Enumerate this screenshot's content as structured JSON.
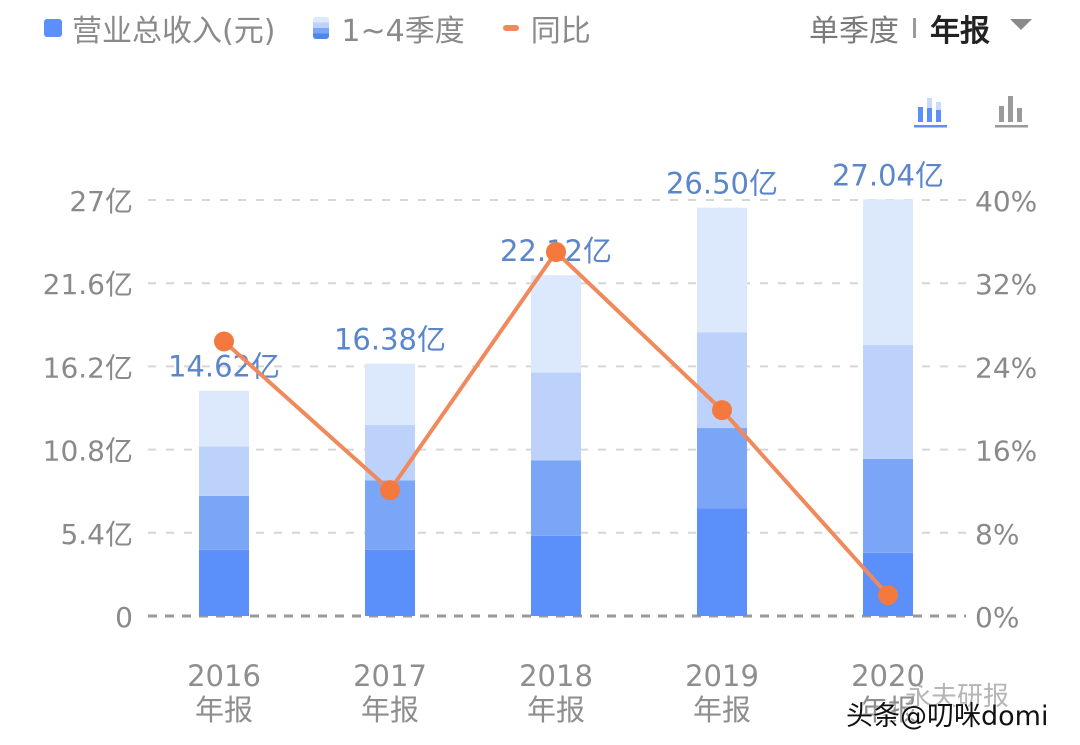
{
  "legend": {
    "items": [
      {
        "label": "营业总收入(元)",
        "type": "solid",
        "color": "#5b8ff9"
      },
      {
        "label": "1~4季度",
        "type": "gradient"
      },
      {
        "label": "同比",
        "type": "line",
        "color": "#f08a5d"
      }
    ]
  },
  "period_toggle": {
    "options": [
      "单季度",
      "年报"
    ],
    "selected": "年报",
    "caret": "chevron-down-icon"
  },
  "view_buttons": [
    {
      "name": "stacked-bar-chart-icon",
      "active": true,
      "color": "#5b8ff9"
    },
    {
      "name": "bar-chart-icon",
      "active": false,
      "color": "#9a9a9a"
    }
  ],
  "colors": {
    "q1": "#5b8ff9",
    "q2": "#7ba6f7",
    "q3": "#bcd2fb",
    "q4": "#dce8fb",
    "line": "#f08a5d",
    "value_label": "#5b86c9",
    "axis_text": "#8a8a8a",
    "grid": "#d6d6d6"
  },
  "chart_data": {
    "type": "bar",
    "title": "",
    "categories": [
      "2016年报",
      "2017年报",
      "2018年报",
      "2019年报",
      "2020年报"
    ],
    "category_labels": [
      {
        "year": "2016",
        "suffix": "年报"
      },
      {
        "year": "2017",
        "suffix": "年报"
      },
      {
        "year": "2018",
        "suffix": "年报"
      },
      {
        "year": "2019",
        "suffix": "年报"
      },
      {
        "year": "2020",
        "suffix": "年报"
      }
    ],
    "totals": [
      14.62,
      16.38,
      22.12,
      26.5,
      27.04
    ],
    "total_labels": [
      "14.62亿",
      "16.38亿",
      "22.12亿",
      "26.50亿",
      "27.04亿"
    ],
    "series": [
      {
        "name": "Q1",
        "values": [
          4.3,
          4.3,
          5.2,
          7.0,
          4.1
        ]
      },
      {
        "name": "Q2",
        "values": [
          3.5,
          4.5,
          4.9,
          5.2,
          6.1
        ]
      },
      {
        "name": "Q3",
        "values": [
          3.2,
          3.6,
          5.7,
          6.2,
          7.4
        ]
      },
      {
        "name": "Q4",
        "values": [
          3.62,
          3.98,
          6.32,
          8.1,
          9.44
        ]
      },
      {
        "name": "同比",
        "axis": "right",
        "type": "line",
        "values": [
          26.4,
          12.1,
          35.0,
          19.8,
          2.0
        ]
      }
    ],
    "xlabel": "",
    "ylabel": "",
    "ylim": [
      0,
      27
    ],
    "y_ticks": [
      "0",
      "5.4亿",
      "10.8亿",
      "16.2亿",
      "21.6亿",
      "27亿"
    ],
    "y2lim": [
      0,
      40
    ],
    "y2_ticks": [
      "0%",
      "8%",
      "16%",
      "24%",
      "32%",
      "40%"
    ],
    "grid": true,
    "legend_position": "top-left"
  },
  "watermark": {
    "primary": "头条@叨咪domi",
    "secondary": "永夫研报"
  }
}
